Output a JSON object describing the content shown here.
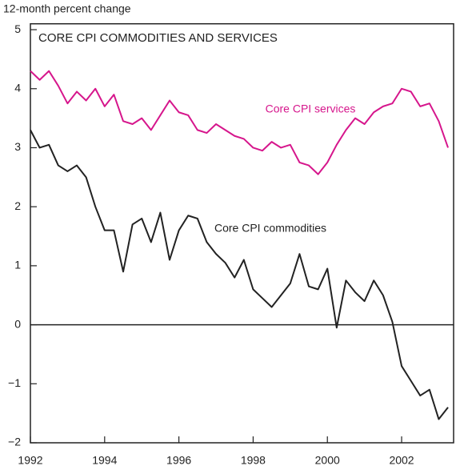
{
  "chart_data": {
    "type": "line",
    "title": "CORE CPI COMMODITIES AND SERVICES",
    "y_label": "12-month percent change",
    "x": [
      1992,
      1992.25,
      1992.5,
      1992.75,
      1993,
      1993.25,
      1993.5,
      1993.75,
      1994,
      1994.25,
      1994.5,
      1994.75,
      1995,
      1995.25,
      1995.5,
      1995.75,
      1996,
      1996.25,
      1996.5,
      1996.75,
      1997,
      1997.25,
      1997.5,
      1997.75,
      1998,
      1998.25,
      1998.5,
      1998.75,
      1999,
      1999.25,
      1999.5,
      1999.75,
      2000,
      2000.25,
      2000.5,
      2000.75,
      2001,
      2001.25,
      2001.5,
      2001.75,
      2002,
      2002.25,
      2002.5,
      2002.75,
      2003,
      2003.25
    ],
    "series": [
      {
        "name": "Core CPI services",
        "color": "#d6168c",
        "values": [
          4.3,
          4.15,
          4.3,
          4.05,
          3.75,
          3.95,
          3.8,
          4.0,
          3.7,
          3.9,
          3.45,
          3.4,
          3.5,
          3.3,
          3.55,
          3.8,
          3.6,
          3.55,
          3.3,
          3.25,
          3.4,
          3.3,
          3.2,
          3.15,
          3.0,
          2.95,
          3.1,
          3.0,
          3.05,
          2.75,
          2.7,
          2.55,
          2.75,
          3.05,
          3.3,
          3.5,
          3.4,
          3.6,
          3.7,
          3.75,
          4.0,
          3.95,
          3.7,
          3.75,
          3.45,
          3.0
        ]
      },
      {
        "name": "Core CPI commodities",
        "color": "#222222",
        "values": [
          3.3,
          3.0,
          3.05,
          2.7,
          2.6,
          2.7,
          2.5,
          2.0,
          1.6,
          1.6,
          0.9,
          1.7,
          1.8,
          1.4,
          1.9,
          1.1,
          1.6,
          1.85,
          1.8,
          1.4,
          1.2,
          1.05,
          0.8,
          1.1,
          0.6,
          0.45,
          0.3,
          0.5,
          0.7,
          1.2,
          0.65,
          0.6,
          0.95,
          -0.05,
          0.75,
          0.55,
          0.4,
          0.75,
          0.5,
          0.05,
          -0.7,
          -0.95,
          -1.2,
          -1.1,
          -1.6,
          -1.4
        ]
      }
    ],
    "xlim": [
      1992,
      2003.4
    ],
    "xticks": [
      1992,
      1994,
      1996,
      1998,
      2000,
      2002
    ],
    "ylim": [
      -2,
      5.1
    ],
    "yticks": [
      {
        "value": -2,
        "label": "−2"
      },
      {
        "value": -1,
        "label": "−1"
      },
      0,
      1,
      2,
      3,
      4,
      5
    ]
  }
}
